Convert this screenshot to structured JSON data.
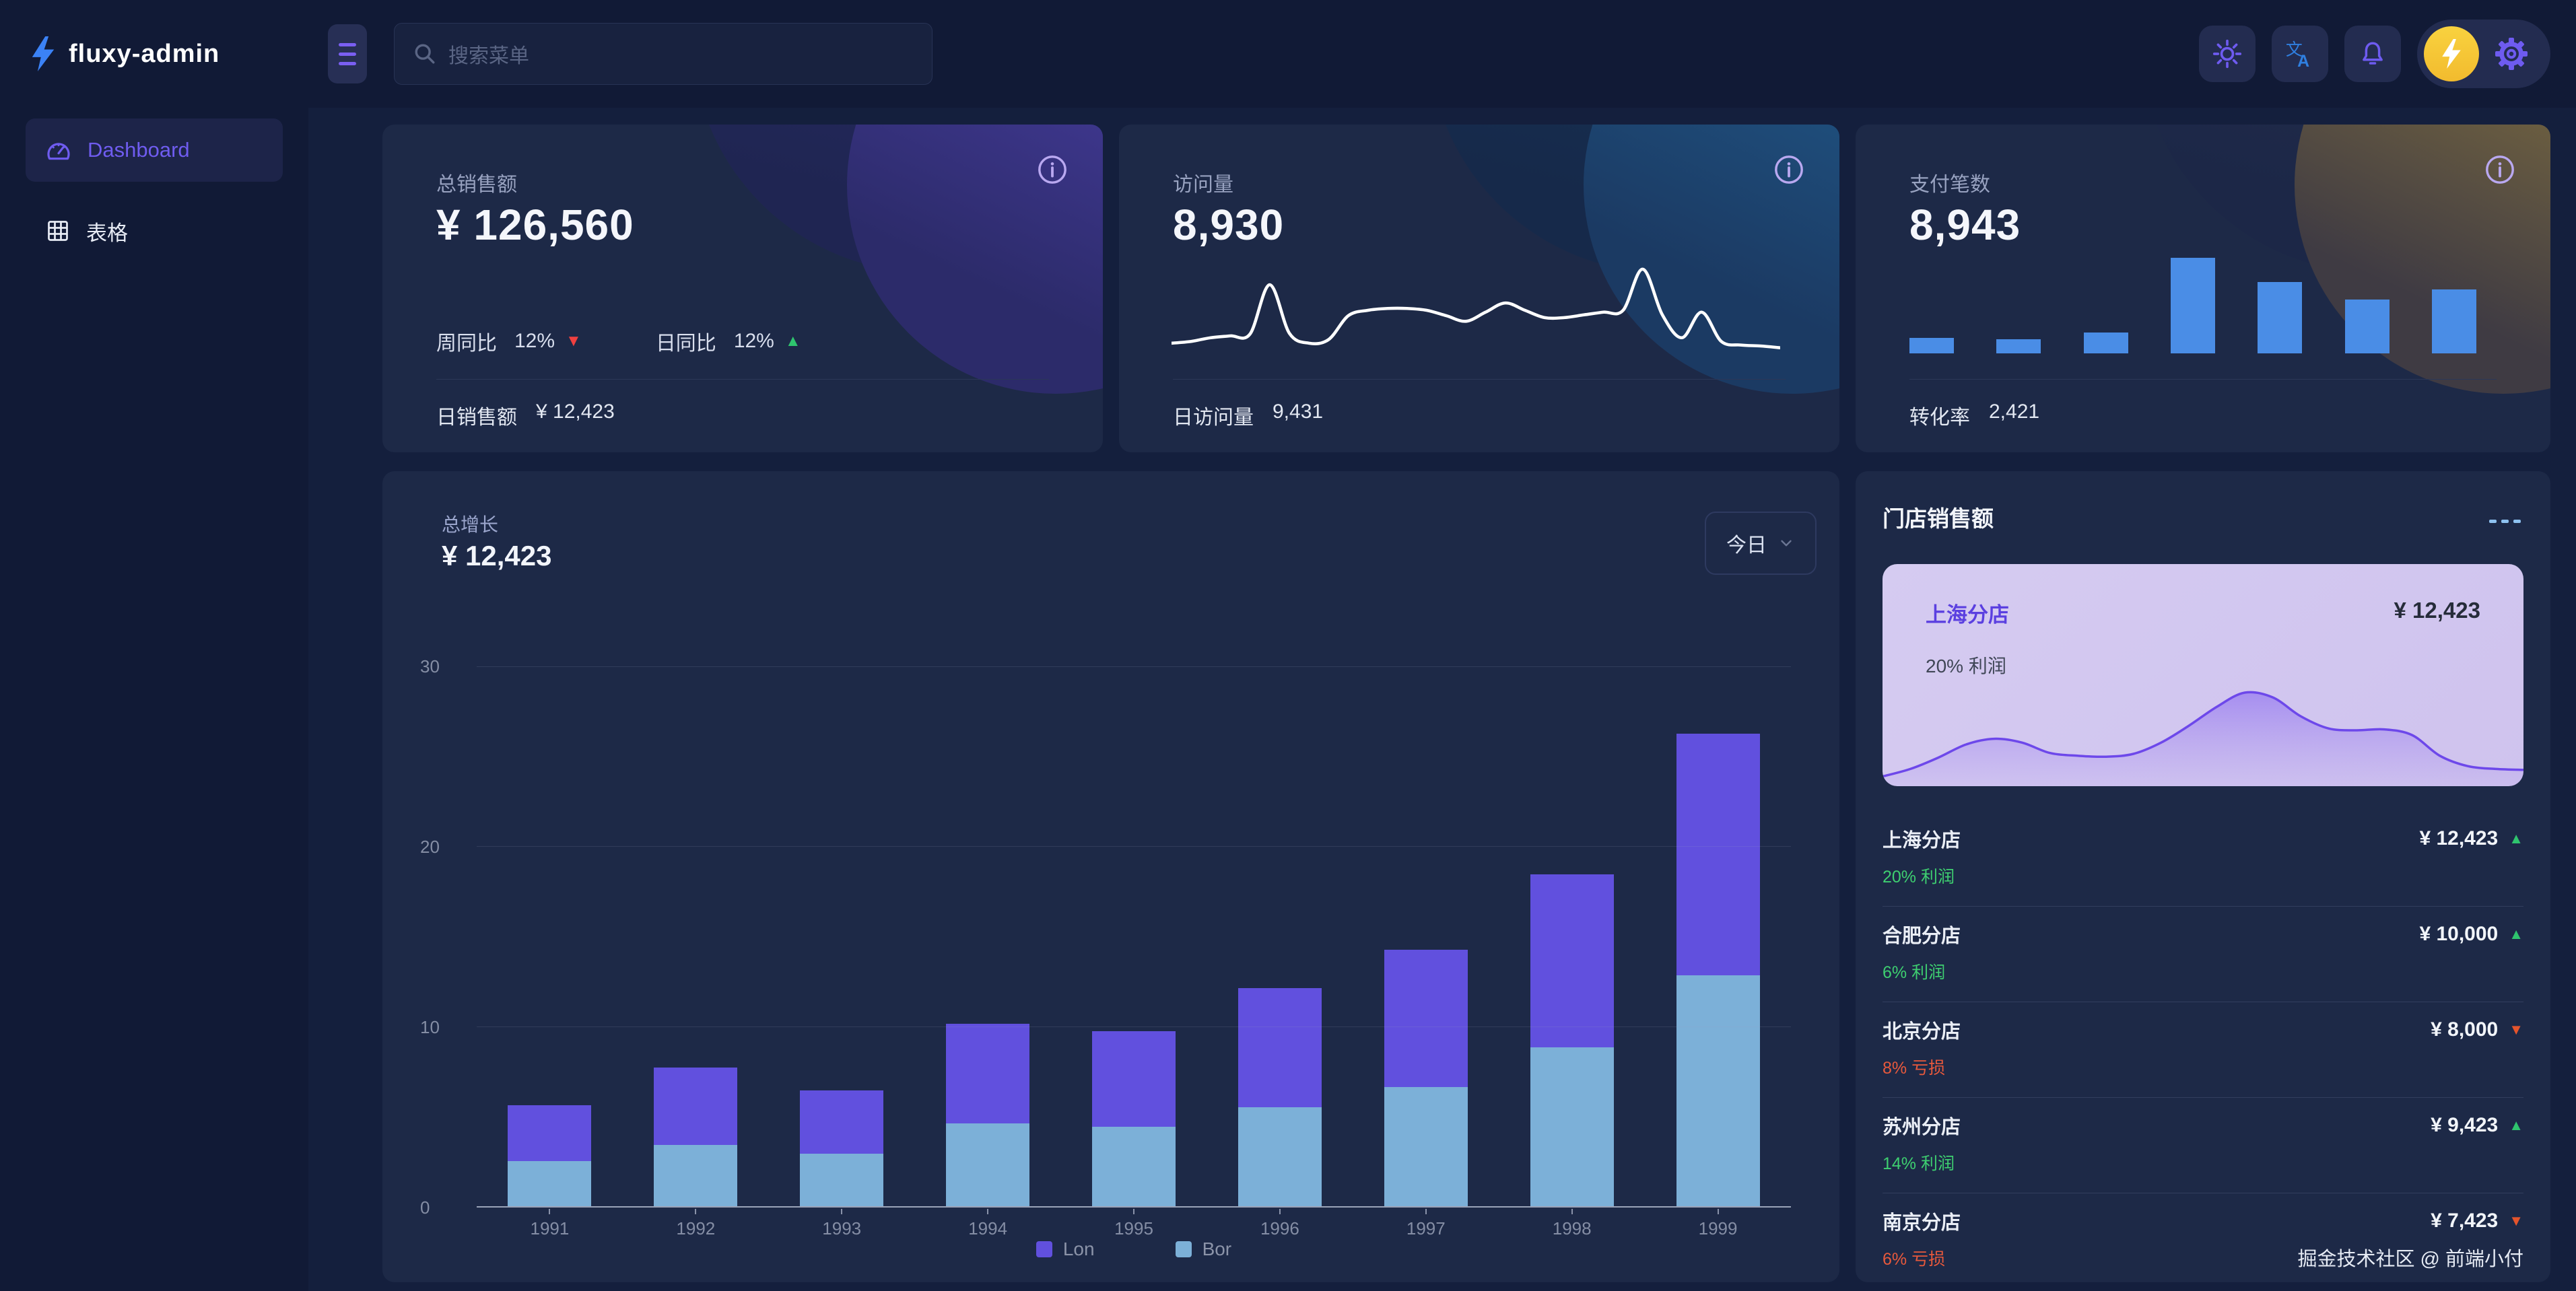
{
  "app": {
    "title": "fluxy-admin"
  },
  "header": {
    "search": {
      "placeholder": "搜索菜单",
      "icon": "search-icon"
    },
    "actions": [
      "theme-sun-icon",
      "translate-icon",
      "notification-bell-icon",
      "user-avatar-lightning",
      "settings-gear-icon"
    ]
  },
  "sidebar": {
    "items": [
      {
        "label": "Dashboard",
        "icon": "dashboard-gauge-icon",
        "active": true
      },
      {
        "label": "表格",
        "icon": "table-icon",
        "active": false
      }
    ]
  },
  "colors": {
    "accent_purple": "#6e5bf0",
    "icon_blue": "#2f7fe0",
    "avatar_yellow": "#f5c83d",
    "bar_purple": "#6150de",
    "bar_blue": "#7cb0d8",
    "mini_bar_blue": "#4a8de6",
    "up_green": "#2fc46e",
    "down_red": "#ef4040",
    "down_orange": "#e5542c",
    "highlight_lavender": "#cfc3ee",
    "store_purple": "#5b40e0"
  },
  "stat_cards": [
    {
      "title": "总销售额",
      "value": "¥ 126,560",
      "theme": "purple",
      "info_icon": "info-circle-icon",
      "metrics": [
        {
          "label": "周同比",
          "value": "12%",
          "trend": "down"
        },
        {
          "label": "日同比",
          "value": "12%",
          "trend": "up"
        }
      ],
      "footer": {
        "label": "日销售额",
        "value": "¥ 12,423"
      }
    },
    {
      "title": "访问量",
      "value": "8,930",
      "theme": "blue",
      "info_icon": "info-circle-icon",
      "footer": {
        "label": "日访问量",
        "value": "9,431"
      }
    },
    {
      "title": "支付笔数",
      "value": "8,943",
      "theme": "gold",
      "info_icon": "info-circle-icon",
      "footer": {
        "label": "转化率",
        "value": "2,421"
      }
    }
  ],
  "growth": {
    "label": "总增长",
    "value": "¥ 12,423",
    "range": {
      "label": "今日",
      "icon": "chevron-down-icon"
    }
  },
  "stores": {
    "title": "门店销售额",
    "more_icon": "ellipsis-icon",
    "highlight": {
      "name": "上海分店",
      "value": "¥ 12,423",
      "note": "20% 利润"
    },
    "rows": [
      {
        "name": "上海分店",
        "value": "¥ 12,423",
        "trend": "up",
        "note": "20% 利润",
        "note_type": "profit"
      },
      {
        "name": "合肥分店",
        "value": "¥ 10,000",
        "trend": "up",
        "note": "6% 利润",
        "note_type": "profit"
      },
      {
        "name": "北京分店",
        "value": "¥ 8,000",
        "trend": "down",
        "note": "8% 亏损",
        "note_type": "loss"
      },
      {
        "name": "苏州分店",
        "value": "¥ 9,423",
        "trend": "up",
        "note": "14% 利润",
        "note_type": "profit"
      },
      {
        "name": "南京分店",
        "value": "¥ 7,423",
        "trend": "down",
        "note": "6% 亏损",
        "note_type": "loss"
      }
    ],
    "credit": "掘金技术社区 @ 前端小付"
  },
  "chart_data": [
    {
      "type": "bar",
      "stacked": true,
      "title": "总增长",
      "categories": [
        "1991",
        "1992",
        "1993",
        "1994",
        "1995",
        "1996",
        "1997",
        "1998",
        "1999"
      ],
      "series": [
        {
          "name": "Lon",
          "color": "#6150de",
          "values": [
            3.1,
            4.3,
            3.5,
            5.5,
            5.3,
            6.6,
            7.6,
            9.6,
            13.4
          ]
        },
        {
          "name": "Bor",
          "color": "#7cb0d8",
          "values": [
            2.5,
            3.4,
            2.9,
            4.6,
            4.4,
            5.5,
            6.6,
            8.8,
            12.8
          ]
        }
      ],
      "stack_order_bottom_to_top": [
        "Bor",
        "Lon"
      ],
      "ylim": [
        0,
        30
      ],
      "yticks": [
        0,
        10,
        20,
        30
      ],
      "grid": true,
      "legend_position": "bottom"
    },
    {
      "type": "line",
      "title": "访问量趋势 (sparkline)",
      "color": "#ffffff",
      "yrange_relative": [
        0,
        100
      ],
      "values": [
        14,
        16,
        20,
        22,
        24,
        78,
        25,
        14,
        18,
        44,
        50,
        52,
        52,
        50,
        44,
        38,
        48,
        58,
        50,
        42,
        42,
        45,
        48,
        50,
        95,
        45,
        20,
        48,
        16,
        12,
        11,
        9
      ]
    },
    {
      "type": "bar",
      "title": "支付笔数分布 (mini bars)",
      "color": "#4a8de6",
      "ylim": [
        0,
        10
      ],
      "values": [
        1.6,
        1.5,
        2.2,
        10,
        7.5,
        5.6,
        6.7
      ]
    },
    {
      "type": "area",
      "title": "上海分店销售趋势 (sparkline)",
      "color": "#6d48ea",
      "yrange_relative": [
        0,
        100
      ],
      "values": [
        6,
        14,
        26,
        40,
        46,
        42,
        31,
        28,
        27,
        30,
        42,
        60,
        80,
        95,
        90,
        70,
        57,
        55,
        56,
        50,
        28,
        17,
        14,
        13
      ]
    }
  ]
}
